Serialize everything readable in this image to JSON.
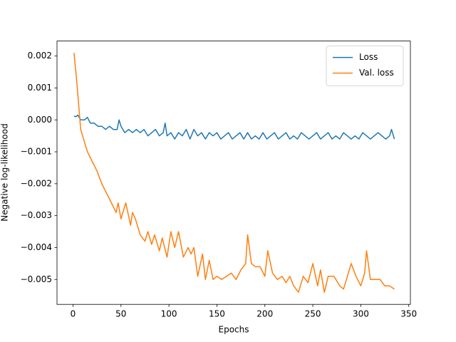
{
  "chart_data": {
    "type": "line",
    "xlabel": "Epochs",
    "ylabel": "Negative log-likelihood",
    "xlim": [
      -16.7,
      351.7
    ],
    "xticks": [
      0,
      50,
      100,
      150,
      200,
      250,
      300,
      350
    ],
    "ylim": [
      -0.00578,
      0.00247
    ],
    "yticks": [
      0.002,
      0.001,
      {
        "value": 0,
        "label": "0.000"
      },
      {
        "value": -0.001,
        "label": "−0.001"
      },
      {
        "value": -0.002,
        "label": "−0.002"
      },
      {
        "value": -0.003,
        "label": "−0.003"
      },
      {
        "value": -0.004,
        "label": "−0.004"
      },
      {
        "value": -0.005,
        "label": "−0.005"
      }
    ],
    "legend": "upper right",
    "series": [
      {
        "name": "Loss",
        "color": "#1f77b4",
        "x": [
          1,
          3,
          5,
          8,
          12,
          15,
          18,
          22,
          26,
          30,
          34,
          38,
          42,
          46,
          48,
          50,
          54,
          58,
          62,
          66,
          70,
          74,
          78,
          82,
          86,
          90,
          94,
          96,
          98,
          102,
          106,
          110,
          114,
          118,
          122,
          126,
          130,
          134,
          138,
          142,
          146,
          150,
          154,
          158,
          162,
          166,
          170,
          174,
          178,
          182,
          186,
          190,
          194,
          198,
          202,
          206,
          210,
          214,
          218,
          222,
          226,
          230,
          234,
          238,
          242,
          246,
          250,
          254,
          258,
          262,
          266,
          270,
          274,
          278,
          282,
          286,
          290,
          294,
          298,
          302,
          306,
          310,
          314,
          318,
          322,
          326,
          330,
          332,
          335
        ],
        "values": [
          0.00012,
          0.0001,
          0.00015,
          0.0,
          0.0,
          8e-05,
          -0.0001,
          -0.0001,
          -0.0002,
          -0.0002,
          -0.0003,
          -0.0002,
          -0.0003,
          -0.0003,
          0.0,
          -0.0002,
          -0.0004,
          -0.0003,
          -0.0004,
          -0.0003,
          -0.0004,
          -0.0003,
          -0.0005,
          -0.0004,
          -0.0003,
          -0.0005,
          -0.0004,
          -0.0001,
          -0.0005,
          -0.0004,
          -0.0006,
          -0.0004,
          -0.0005,
          -0.0003,
          -0.0006,
          -0.0003,
          -0.0005,
          -0.0004,
          -0.0006,
          -0.0004,
          -0.0005,
          -0.0004,
          -0.0006,
          -0.0005,
          -0.0004,
          -0.0006,
          -0.0005,
          -0.0004,
          -0.0006,
          -0.0004,
          -0.0006,
          -0.0005,
          -0.0006,
          -0.0004,
          -0.0006,
          -0.0005,
          -0.0004,
          -0.0006,
          -0.0005,
          -0.0004,
          -0.0006,
          -0.0005,
          -0.0006,
          -0.0004,
          -0.0005,
          -0.0006,
          -0.0005,
          -0.0004,
          -0.0006,
          -0.0005,
          -0.0004,
          -0.0006,
          -0.0005,
          -0.0006,
          -0.0004,
          -0.0005,
          -0.0006,
          -0.0005,
          -0.0006,
          -0.0004,
          -0.0005,
          -0.0006,
          -0.0005,
          -0.0004,
          -0.0005,
          -0.0006,
          -0.0005,
          -0.0003,
          -0.0006
        ]
      },
      {
        "name": "Val. loss",
        "color": "#ff7f0e",
        "x": [
          1,
          3,
          5,
          8,
          10,
          15,
          20,
          25,
          30,
          35,
          40,
          45,
          47,
          50,
          55,
          60,
          62,
          65,
          70,
          75,
          78,
          82,
          85,
          90,
          93,
          98,
          102,
          106,
          110,
          115,
          120,
          123,
          126,
          130,
          135,
          138,
          142,
          146,
          150,
          155,
          160,
          165,
          170,
          175,
          180,
          182,
          186,
          190,
          195,
          200,
          203,
          208,
          213,
          218,
          222,
          226,
          230,
          235,
          240,
          245,
          250,
          255,
          258,
          262,
          266,
          272,
          278,
          282,
          286,
          290,
          295,
          300,
          304,
          306,
          310,
          315,
          320,
          325,
          330,
          335
        ],
        "values": [
          0.0021,
          0.0015,
          0.0008,
          -0.0003,
          -0.0005,
          -0.001,
          -0.0013,
          -0.0016,
          -0.002,
          -0.0023,
          -0.0026,
          -0.0029,
          -0.0026,
          -0.0031,
          -0.0026,
          -0.0033,
          -0.0029,
          -0.0031,
          -0.0036,
          -0.0038,
          -0.0035,
          -0.0039,
          -0.0036,
          -0.0041,
          -0.0037,
          -0.0043,
          -0.0035,
          -0.004,
          -0.0035,
          -0.0043,
          -0.004,
          -0.0042,
          -0.004,
          -0.0049,
          -0.0042,
          -0.005,
          -0.0044,
          -0.005,
          -0.0049,
          -0.005,
          -0.0049,
          -0.0048,
          -0.005,
          -0.0047,
          -0.0045,
          -0.0036,
          -0.0045,
          -0.0046,
          -0.0046,
          -0.0049,
          -0.0041,
          -0.0048,
          -0.005,
          -0.0049,
          -0.0051,
          -0.0049,
          -0.0052,
          -0.0054,
          -0.0049,
          -0.0051,
          -0.0045,
          -0.0052,
          -0.0047,
          -0.0054,
          -0.0049,
          -0.0049,
          -0.0052,
          -0.0053,
          -0.0049,
          -0.0045,
          -0.0049,
          -0.0052,
          -0.0048,
          -0.0041,
          -0.005,
          -0.005,
          -0.005,
          -0.0052,
          -0.0052,
          -0.0053
        ]
      }
    ]
  }
}
